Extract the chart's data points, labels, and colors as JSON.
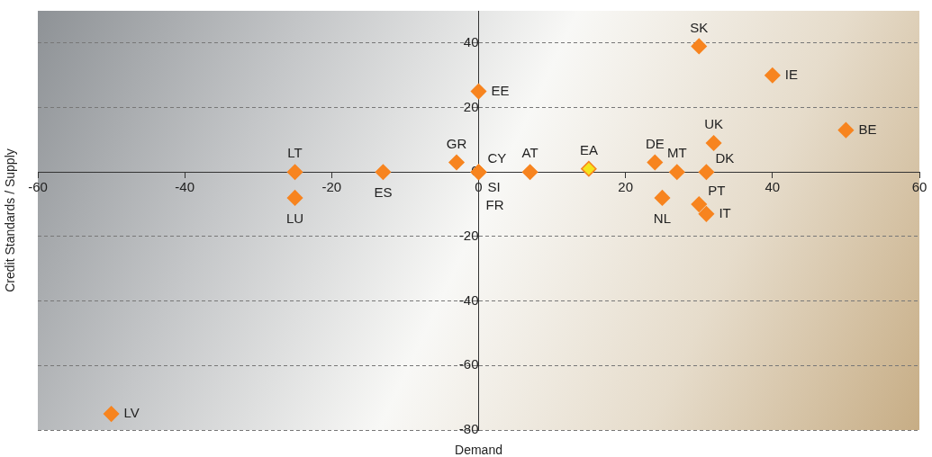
{
  "chart_data": {
    "type": "scatter",
    "xlabel": "Demand",
    "ylabel": "Credit Standards / Supply",
    "x": [
      30,
      40,
      0,
      50,
      32,
      -25,
      -25,
      -13,
      -3,
      0,
      0,
      0,
      7,
      15,
      24,
      27,
      31,
      25,
      30,
      31,
      -50
    ],
    "series": [
      {
        "color": "#f7841f",
        "colors": [
          "#f7841f",
          "#f7841f",
          "#f7841f",
          "#f7841f",
          "#f7841f",
          "#f7841f",
          "#f7841f",
          "#f7841f",
          "#f7841f",
          "#f7841f",
          "#f7841f",
          "#f7841f",
          "#f7841f",
          "#f4e41c",
          "#f7841f",
          "#f7841f",
          "#f7841f",
          "#f7841f",
          "#f7841f",
          "#f7841f",
          "#f7841f"
        ],
        "values": [
          39,
          30,
          25,
          13,
          9,
          0,
          -8,
          0,
          3,
          0,
          0,
          0,
          0,
          1,
          3,
          0,
          0,
          -8,
          -10,
          -13,
          -75
        ]
      }
    ],
    "annotations": [
      {
        "text": "SK",
        "x": 30,
        "y": 39
      },
      {
        "text": "IE",
        "x": 40,
        "y": 30
      },
      {
        "text": "EE",
        "x": 0,
        "y": 25
      },
      {
        "text": "BE",
        "x": 50,
        "y": 13
      },
      {
        "text": "UK",
        "x": 32,
        "y": 9
      },
      {
        "text": "LT",
        "x": -25,
        "y": 0
      },
      {
        "text": "LU",
        "x": -25,
        "y": -8
      },
      {
        "text": "ES",
        "x": -13,
        "y": 0
      },
      {
        "text": "GR",
        "x": -3,
        "y": 3
      },
      {
        "text": "CY",
        "x": 0,
        "y": 0
      },
      {
        "text": "SI",
        "x": 0,
        "y": 0
      },
      {
        "text": "FR",
        "x": 0,
        "y": 0
      },
      {
        "text": "AT",
        "x": 7,
        "y": 0
      },
      {
        "text": "EA",
        "x": 15,
        "y": 1
      },
      {
        "text": "DE",
        "x": 24,
        "y": 3
      },
      {
        "text": "MT",
        "x": 27,
        "y": 0
      },
      {
        "text": "DK",
        "x": 31,
        "y": 0
      },
      {
        "text": "NL",
        "x": 25,
        "y": -8
      },
      {
        "text": "PT",
        "x": 30,
        "y": -10
      },
      {
        "text": "IT",
        "x": 31,
        "y": -13
      },
      {
        "text": "LV",
        "x": -50,
        "y": -75
      }
    ],
    "xlim": [
      -60,
      60
    ],
    "xticks": [
      -60,
      -40,
      -20,
      0,
      20,
      40,
      60
    ],
    "ylim": [
      -80,
      50
    ],
    "yticks": [
      -80,
      -60,
      -40,
      -20,
      0,
      20,
      40
    ],
    "grid": "y",
    "legend": false,
    "marker": "diamond"
  }
}
